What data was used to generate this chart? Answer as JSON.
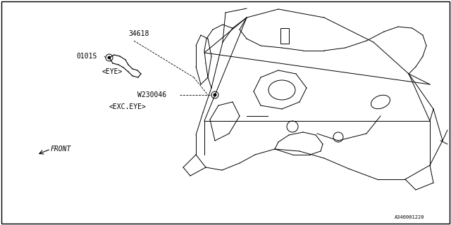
{
  "bg_color": "#ffffff",
  "border_color": "#000000",
  "line_color": "#000000",
  "diagram_id": "A346001220",
  "part_34618_label": "34618",
  "part_0101s_label": "0101S",
  "part_eye_label": "<EYE>",
  "part_w230046_label": "W230046",
  "part_exceye_label": "<EXC.EYE>",
  "front_label": "FRONT",
  "title_fontsize": 7,
  "small_fontsize": 6,
  "diagram_fontsize": 6
}
